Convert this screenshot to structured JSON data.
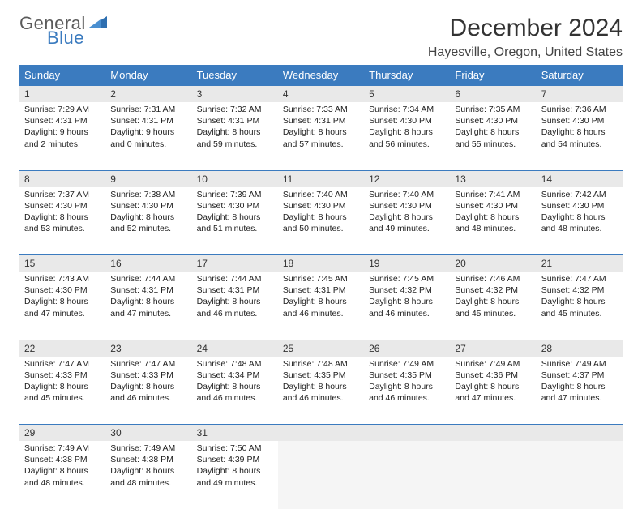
{
  "logo": {
    "general": "General",
    "blue": "Blue"
  },
  "title": "December 2024",
  "location": "Hayesville, Oregon, United States",
  "colors": {
    "header_bg": "#3b7bbf",
    "header_fg": "#ffffff",
    "daynum_bg": "#e9e9e9",
    "rule": "#3b7bbf",
    "text": "#222222"
  },
  "weekdays": [
    "Sunday",
    "Monday",
    "Tuesday",
    "Wednesday",
    "Thursday",
    "Friday",
    "Saturday"
  ],
  "weeks": [
    [
      {
        "n": "1",
        "sr": "Sunrise: 7:29 AM",
        "ss": "Sunset: 4:31 PM",
        "dl": "Daylight: 9 hours and 2 minutes."
      },
      {
        "n": "2",
        "sr": "Sunrise: 7:31 AM",
        "ss": "Sunset: 4:31 PM",
        "dl": "Daylight: 9 hours and 0 minutes."
      },
      {
        "n": "3",
        "sr": "Sunrise: 7:32 AM",
        "ss": "Sunset: 4:31 PM",
        "dl": "Daylight: 8 hours and 59 minutes."
      },
      {
        "n": "4",
        "sr": "Sunrise: 7:33 AM",
        "ss": "Sunset: 4:31 PM",
        "dl": "Daylight: 8 hours and 57 minutes."
      },
      {
        "n": "5",
        "sr": "Sunrise: 7:34 AM",
        "ss": "Sunset: 4:30 PM",
        "dl": "Daylight: 8 hours and 56 minutes."
      },
      {
        "n": "6",
        "sr": "Sunrise: 7:35 AM",
        "ss": "Sunset: 4:30 PM",
        "dl": "Daylight: 8 hours and 55 minutes."
      },
      {
        "n": "7",
        "sr": "Sunrise: 7:36 AM",
        "ss": "Sunset: 4:30 PM",
        "dl": "Daylight: 8 hours and 54 minutes."
      }
    ],
    [
      {
        "n": "8",
        "sr": "Sunrise: 7:37 AM",
        "ss": "Sunset: 4:30 PM",
        "dl": "Daylight: 8 hours and 53 minutes."
      },
      {
        "n": "9",
        "sr": "Sunrise: 7:38 AM",
        "ss": "Sunset: 4:30 PM",
        "dl": "Daylight: 8 hours and 52 minutes."
      },
      {
        "n": "10",
        "sr": "Sunrise: 7:39 AM",
        "ss": "Sunset: 4:30 PM",
        "dl": "Daylight: 8 hours and 51 minutes."
      },
      {
        "n": "11",
        "sr": "Sunrise: 7:40 AM",
        "ss": "Sunset: 4:30 PM",
        "dl": "Daylight: 8 hours and 50 minutes."
      },
      {
        "n": "12",
        "sr": "Sunrise: 7:40 AM",
        "ss": "Sunset: 4:30 PM",
        "dl": "Daylight: 8 hours and 49 minutes."
      },
      {
        "n": "13",
        "sr": "Sunrise: 7:41 AM",
        "ss": "Sunset: 4:30 PM",
        "dl": "Daylight: 8 hours and 48 minutes."
      },
      {
        "n": "14",
        "sr": "Sunrise: 7:42 AM",
        "ss": "Sunset: 4:30 PM",
        "dl": "Daylight: 8 hours and 48 minutes."
      }
    ],
    [
      {
        "n": "15",
        "sr": "Sunrise: 7:43 AM",
        "ss": "Sunset: 4:30 PM",
        "dl": "Daylight: 8 hours and 47 minutes."
      },
      {
        "n": "16",
        "sr": "Sunrise: 7:44 AM",
        "ss": "Sunset: 4:31 PM",
        "dl": "Daylight: 8 hours and 47 minutes."
      },
      {
        "n": "17",
        "sr": "Sunrise: 7:44 AM",
        "ss": "Sunset: 4:31 PM",
        "dl": "Daylight: 8 hours and 46 minutes."
      },
      {
        "n": "18",
        "sr": "Sunrise: 7:45 AM",
        "ss": "Sunset: 4:31 PM",
        "dl": "Daylight: 8 hours and 46 minutes."
      },
      {
        "n": "19",
        "sr": "Sunrise: 7:45 AM",
        "ss": "Sunset: 4:32 PM",
        "dl": "Daylight: 8 hours and 46 minutes."
      },
      {
        "n": "20",
        "sr": "Sunrise: 7:46 AM",
        "ss": "Sunset: 4:32 PM",
        "dl": "Daylight: 8 hours and 45 minutes."
      },
      {
        "n": "21",
        "sr": "Sunrise: 7:47 AM",
        "ss": "Sunset: 4:32 PM",
        "dl": "Daylight: 8 hours and 45 minutes."
      }
    ],
    [
      {
        "n": "22",
        "sr": "Sunrise: 7:47 AM",
        "ss": "Sunset: 4:33 PM",
        "dl": "Daylight: 8 hours and 45 minutes."
      },
      {
        "n": "23",
        "sr": "Sunrise: 7:47 AM",
        "ss": "Sunset: 4:33 PM",
        "dl": "Daylight: 8 hours and 46 minutes."
      },
      {
        "n": "24",
        "sr": "Sunrise: 7:48 AM",
        "ss": "Sunset: 4:34 PM",
        "dl": "Daylight: 8 hours and 46 minutes."
      },
      {
        "n": "25",
        "sr": "Sunrise: 7:48 AM",
        "ss": "Sunset: 4:35 PM",
        "dl": "Daylight: 8 hours and 46 minutes."
      },
      {
        "n": "26",
        "sr": "Sunrise: 7:49 AM",
        "ss": "Sunset: 4:35 PM",
        "dl": "Daylight: 8 hours and 46 minutes."
      },
      {
        "n": "27",
        "sr": "Sunrise: 7:49 AM",
        "ss": "Sunset: 4:36 PM",
        "dl": "Daylight: 8 hours and 47 minutes."
      },
      {
        "n": "28",
        "sr": "Sunrise: 7:49 AM",
        "ss": "Sunset: 4:37 PM",
        "dl": "Daylight: 8 hours and 47 minutes."
      }
    ],
    [
      {
        "n": "29",
        "sr": "Sunrise: 7:49 AM",
        "ss": "Sunset: 4:38 PM",
        "dl": "Daylight: 8 hours and 48 minutes."
      },
      {
        "n": "30",
        "sr": "Sunrise: 7:49 AM",
        "ss": "Sunset: 4:38 PM",
        "dl": "Daylight: 8 hours and 48 minutes."
      },
      {
        "n": "31",
        "sr": "Sunrise: 7:50 AM",
        "ss": "Sunset: 4:39 PM",
        "dl": "Daylight: 8 hours and 49 minutes."
      },
      null,
      null,
      null,
      null
    ]
  ]
}
